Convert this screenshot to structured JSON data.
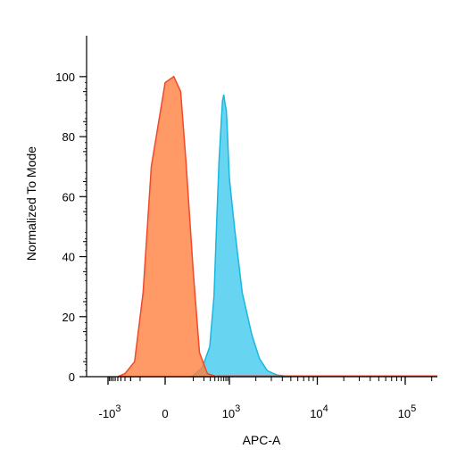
{
  "chart_data": {
    "type": "area",
    "title": "",
    "xlabel": "APC-A",
    "ylabel": "Normalized To Mode",
    "x_scale": "biexponential",
    "ylim": [
      0,
      100
    ],
    "y_ticks": [
      0,
      20,
      40,
      60,
      80,
      100
    ],
    "x_ticks": [
      {
        "value": -1000,
        "base": "-10",
        "exp": "3"
      },
      {
        "value": 0,
        "base": "0",
        "exp": ""
      },
      {
        "value": 1000,
        "base": "10",
        "exp": "3"
      },
      {
        "value": 10000,
        "base": "10",
        "exp": "4"
      },
      {
        "value": 100000,
        "base": "10",
        "exp": "5"
      }
    ],
    "grid": false,
    "legend": "none",
    "series": [
      {
        "color": "#FF7F3F",
        "stroke": "#F04A2A",
        "x": [
          -500,
          -300,
          -150,
          -80,
          -40,
          0,
          20,
          40,
          60,
          100,
          150,
          250,
          450
        ],
        "y": [
          0,
          1,
          5,
          28,
          70,
          98,
          100,
          95,
          72,
          35,
          8,
          1,
          0
        ]
      },
      {
        "color": "#5FD3F0",
        "stroke": "#1AB7DE",
        "x": [
          90,
          180,
          290,
          380,
          450,
          520,
          600,
          650,
          700,
          760,
          820,
          880,
          1000,
          1150,
          1400,
          1800,
          2200,
          2700,
          3500,
          5000
        ],
        "y": [
          0,
          3,
          10,
          27,
          52,
          72,
          85,
          92,
          94,
          91,
          89,
          82,
          66,
          49,
          28,
          14,
          6,
          2,
          0.5,
          0
        ]
      }
    ]
  }
}
